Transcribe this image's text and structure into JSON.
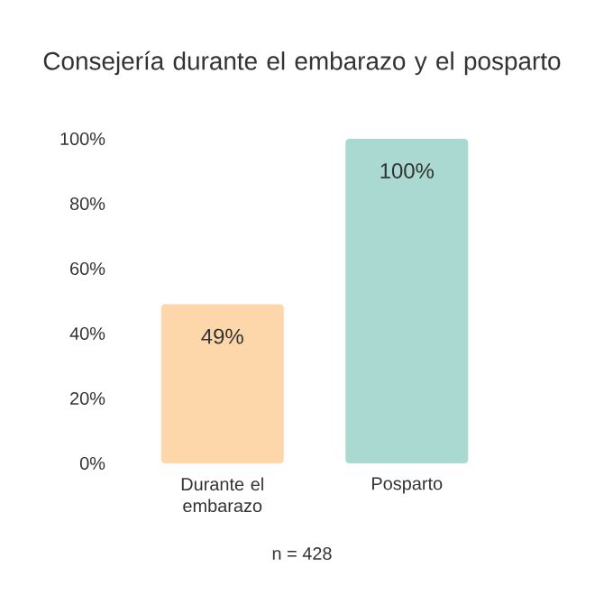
{
  "chart_data": {
    "type": "bar",
    "title": "Consejería durante el embarazo y el posparto",
    "categories": [
      "Durante el embarazo",
      "Posparto"
    ],
    "values": [
      49,
      100
    ],
    "colors": [
      "#fdd6aa",
      "#a9d9d0"
    ],
    "value_labels": [
      "49%",
      "100%"
    ],
    "ylim": [
      0,
      100
    ],
    "yticks": [
      {
        "value": 0,
        "label": "0%"
      },
      {
        "value": 20,
        "label": "20%"
      },
      {
        "value": 40,
        "label": "40%"
      },
      {
        "value": 60,
        "label": "60%"
      },
      {
        "value": 80,
        "label": "80%"
      },
      {
        "value": 100,
        "label": "100%"
      }
    ],
    "grid": false,
    "annotations": [
      "n = 428"
    ]
  }
}
